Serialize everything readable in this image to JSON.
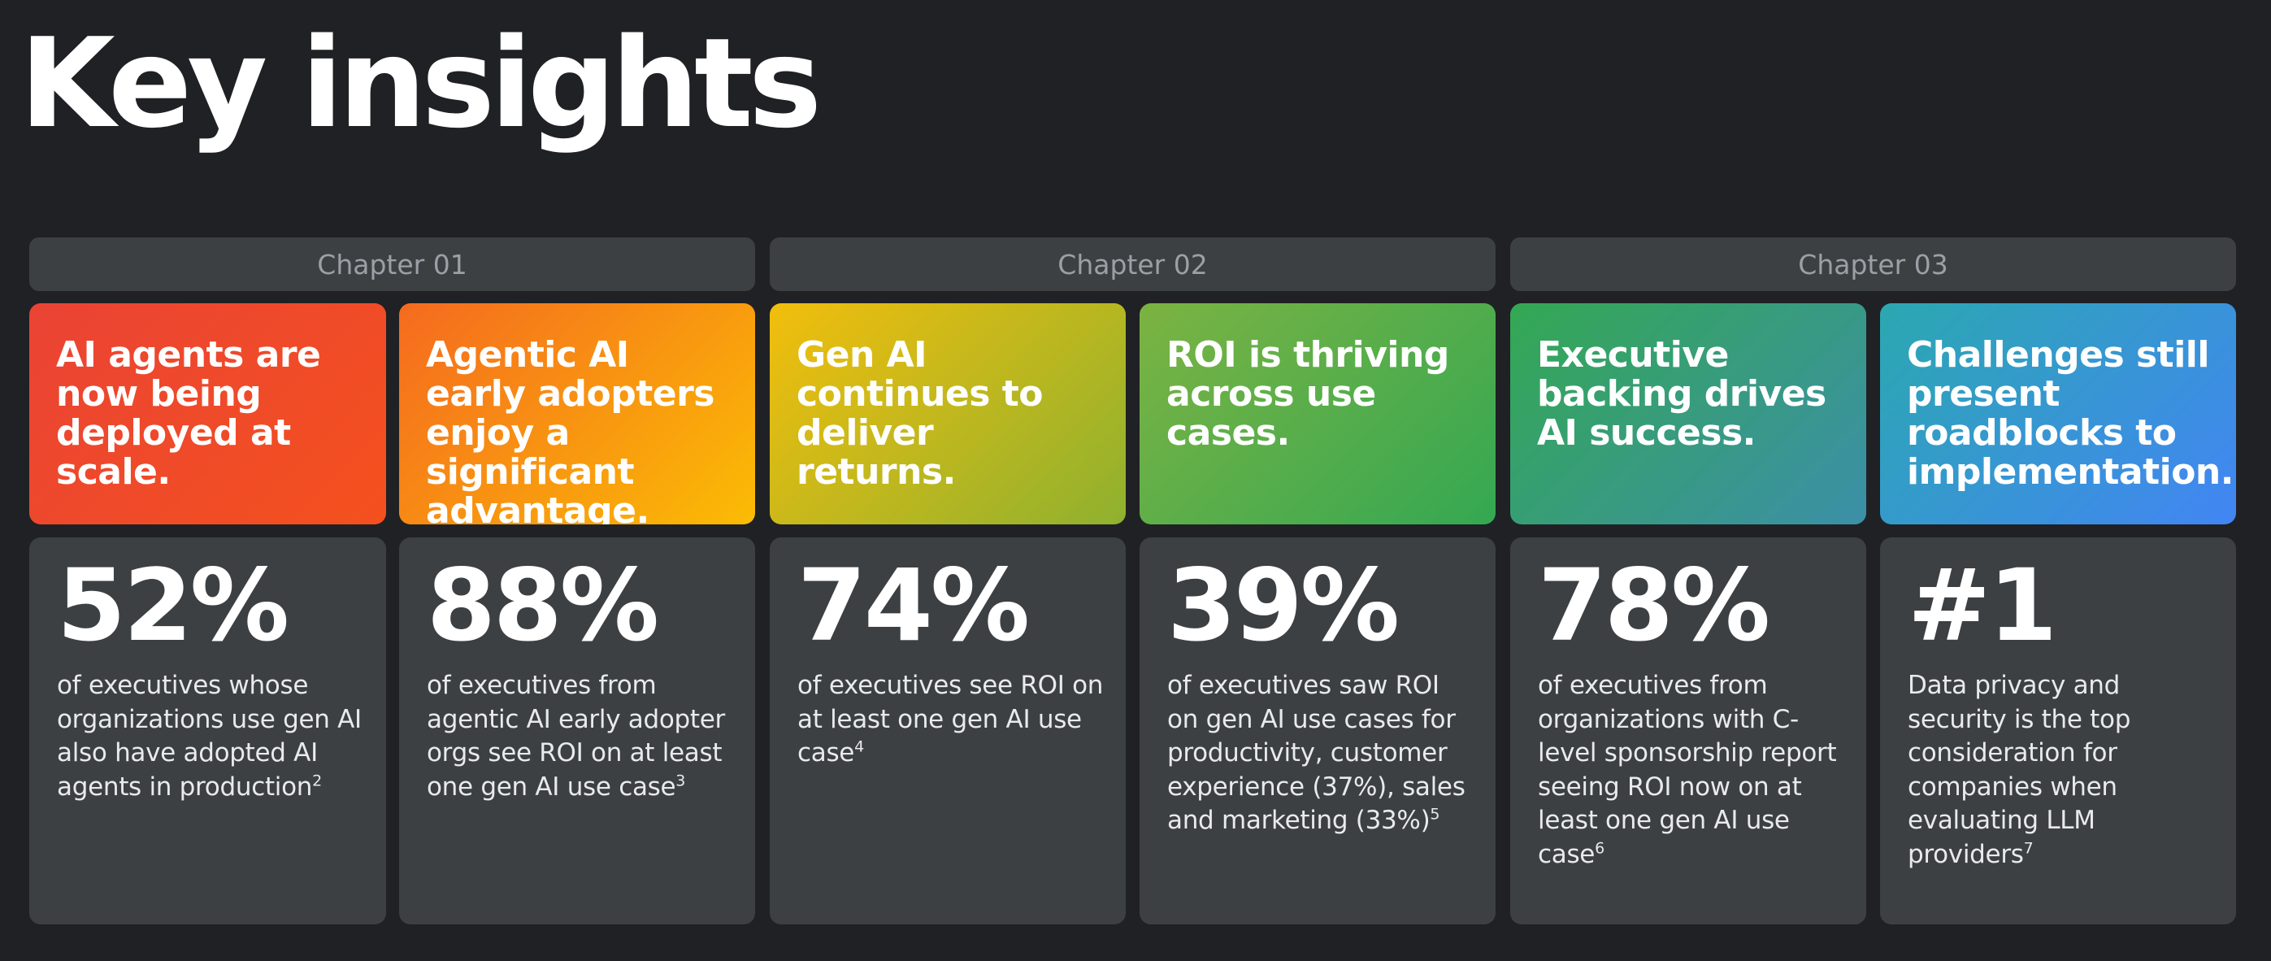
{
  "page": {
    "title": "Key insights"
  },
  "chapters": [
    {
      "label": "Chapter 01"
    },
    {
      "label": "Chapter 02"
    },
    {
      "label": "Chapter 03"
    }
  ],
  "insights": [
    {
      "headline": "AI agents are now being deployed at scale.",
      "stat": "52%",
      "description": "of executives whose organizations use gen AI also have adopted AI agents in production",
      "footnote": "2",
      "gradient": [
        "#ea4335",
        "#f4511e"
      ]
    },
    {
      "headline": "Agentic AI early adopters enjoy a significant advantage.",
      "stat": "88%",
      "description": "of executives from agentic AI early adopter orgs see ROI on at least one gen AI use case",
      "footnote": "3",
      "gradient": [
        "#f56a1f",
        "#fbbc04"
      ]
    },
    {
      "headline": "Gen AI continues to deliver returns.",
      "stat": "74%",
      "description": "of executives see ROI on at least one gen AI use case",
      "footnote": "4",
      "gradient": [
        "#f2be0c",
        "#8fb12f"
      ]
    },
    {
      "headline": "ROI is thriving across use cases.",
      "stat": "39%",
      "description": "of executives saw ROI on gen AI use cases for productivity, customer experience (37%), sales and marketing (33%)",
      "footnote": "5",
      "gradient": [
        "#7cb342",
        "#34a853"
      ]
    },
    {
      "headline": "Executive backing drives AI success.",
      "stat": "78%",
      "description": "of executives from organizations with C-level sponsorship report seeing ROI now on at least one gen AI use case",
      "footnote": "6",
      "gradient": [
        "#34a853",
        "#3b8fa8"
      ]
    },
    {
      "headline": "Challenges still present roadblocks to implementation.",
      "stat": "#1",
      "description": "Data privacy and security is the top consideration for companies when evaluating LLM providers",
      "footnote": "7",
      "gradient": [
        "#2ba8b0",
        "#4285f4"
      ]
    }
  ]
}
